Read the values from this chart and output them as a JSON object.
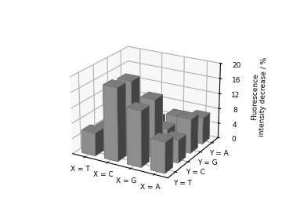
{
  "x_labels": [
    "X = T",
    "X = C",
    "X = G",
    "X = A"
  ],
  "y_labels": [
    "Y = T",
    "Y = C",
    "Y = G",
    "Y = A"
  ],
  "values": [
    [
      6.0,
      5.0,
      8.5,
      1.0
    ],
    [
      19.0,
      18.5,
      4.0,
      4.0
    ],
    [
      14.5,
      15.0,
      5.0,
      6.0
    ],
    [
      8.0,
      6.0,
      9.0,
      7.0
    ]
  ],
  "ylabel": "Fluorescence\nintensity decrease / %",
  "zlim": [
    0,
    20
  ],
  "zticks": [
    0,
    4,
    8,
    12,
    16,
    20
  ],
  "bar_color_face": "#a0a0a0",
  "bar_color_dark": "#707070",
  "background_color": "#e8e8e8",
  "figsize": [
    3.6,
    2.79
  ],
  "dpi": 100
}
